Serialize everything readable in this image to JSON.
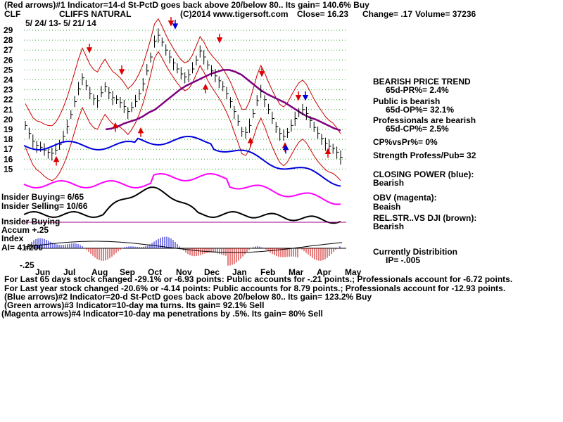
{
  "chart_data": {
    "type": "bar",
    "header": {
      "line1": "(Red arrows)#1 Indicator=14-d St-PctD goes back above 20/below 80..  Its gain= 140.6% Buy",
      "ticker": "CLF",
      "company": "CLIFFS NATURAL",
      "copyright": "(C)2014 www.tigersoft.com",
      "close": "Close=  16.23",
      "change": "Change= .17",
      "volume": "Volume= 37236",
      "date_range": "5/ 24/ 13-  5/ 21/ 14"
    },
    "y_ticks": [
      "29",
      "28",
      "27",
      "26",
      "25",
      "24",
      "23",
      "22",
      "21",
      "20",
      "19",
      "18",
      "17",
      "16",
      "15"
    ],
    "x_labels": [
      "Jun",
      "Jul",
      "Aug",
      "Sep",
      "Oct",
      "Nov",
      "Dec",
      "Jan",
      "Feb",
      "Mar",
      "Apr",
      "May"
    ],
    "ylim": [
      15,
      29
    ],
    "price_close": [
      19.4,
      18.6,
      17.8,
      17.4,
      17.2,
      16.9,
      16.7,
      16.6,
      16.9,
      17.5,
      18.3,
      19.3,
      20.5,
      21.8,
      23.1,
      24.2,
      23.4,
      22.6,
      22.1,
      21.9,
      22.7,
      23.3,
      22.7,
      22.2,
      22.0,
      21.7,
      21.3,
      20.8,
      21.2,
      21.8,
      22.6,
      23.6,
      24.9,
      26.3,
      27.9,
      28.5,
      27.8,
      27.0,
      26.3,
      25.7,
      25.1,
      24.6,
      24.3,
      24.5,
      25.1,
      26.0,
      26.9,
      26.3,
      25.5,
      24.9,
      24.4,
      23.9,
      23.3,
      22.6,
      21.8,
      20.8,
      19.8,
      18.8,
      18.7,
      19.4,
      20.6,
      21.9,
      22.8,
      22.0,
      21.0,
      20.1,
      19.3,
      18.6,
      18.3,
      18.7,
      19.4,
      20.1,
      20.7,
      21.0,
      20.6,
      19.9,
      19.2,
      18.6,
      18.1,
      17.6,
      17.3,
      17.1,
      16.7,
      16.2
    ],
    "mid_band_ma": [
      19.0,
      19.1,
      19.3,
      19.6,
      19.8,
      20.0,
      20.3,
      20.7,
      21.0,
      21.5,
      22.0,
      22.5,
      23.0,
      23.4,
      23.7,
      24.0,
      24.3,
      24.6,
      24.8,
      25.0,
      25.0,
      24.8,
      24.5,
      24.0,
      23.5,
      23.0,
      22.6,
      22.3,
      22.0,
      21.7,
      21.3,
      20.9,
      20.5,
      20.2,
      20.0,
      19.7,
      19.4,
      19.1,
      18.9
    ],
    "indicators": {
      "closing_power_label": "CLOSING POWER (blue):",
      "closing_power_value": "Bearish",
      "obv_label": "OBV (magenta):",
      "obv_value": "Beaish",
      "relstr_label": "REL.STR..VS DJI (brown):",
      "relstr_value": "Bearish",
      "distribution_label": "Currently Distribition",
      "ip_value": "IP= -.005"
    },
    "right_panel": {
      "trend_title": "BEARISH PRICE TREND",
      "pr_pct": "65d-PR%= 2.4%",
      "public_title": "Public is bearish",
      "op_pct": "65d-OP%= 32.1%",
      "prof_title": "Professionals are bearish",
      "cp_pct": "65d-CP%= 2.5%",
      "cpvspr": "CP%vsPr%=  0%",
      "strength": "Strength Profess/Pub= 32"
    },
    "insider": {
      "buying": "Insider Buying= 6/65",
      "selling": "Insider Selling= 10/66",
      "buying2": "Insider Buying",
      "accum": "Accum   +.25",
      "index": "Index",
      "ai": "AI= 41/200",
      "minus": "-.25"
    },
    "footer": [
      "For Last 65 days stock changed -29.1% or -6.93 points:  Public accounts for -.21 points.;  Professionals account for -6.72 points.",
      "For Last year stock changed -20.6% or -4.14 points:  Public accounts for  8.79 points.;  Professionals account for -12.93 points.",
      "(Blue arrows)#2 Indicator=20-d St-PctD goes back above 20/below 80..  Its gain= 123.2% Buy",
      "(Green arrows)#3 Indicator=10-day ma turns.  Its gain= 92.1% Sell",
      "(Magenta arrows)#4 Indicator=10-day ma penetrations by .5%.  Its gain= 80% Sell"
    ],
    "colors": {
      "price": "#000000",
      "band": "#cc0000",
      "ma": "#800080",
      "closing_power": "#0000dd",
      "obv": "#ff00ff",
      "accum_pos": "#0000cc",
      "accum_neg": "#cc0000",
      "grid": "#33aa33"
    }
  }
}
